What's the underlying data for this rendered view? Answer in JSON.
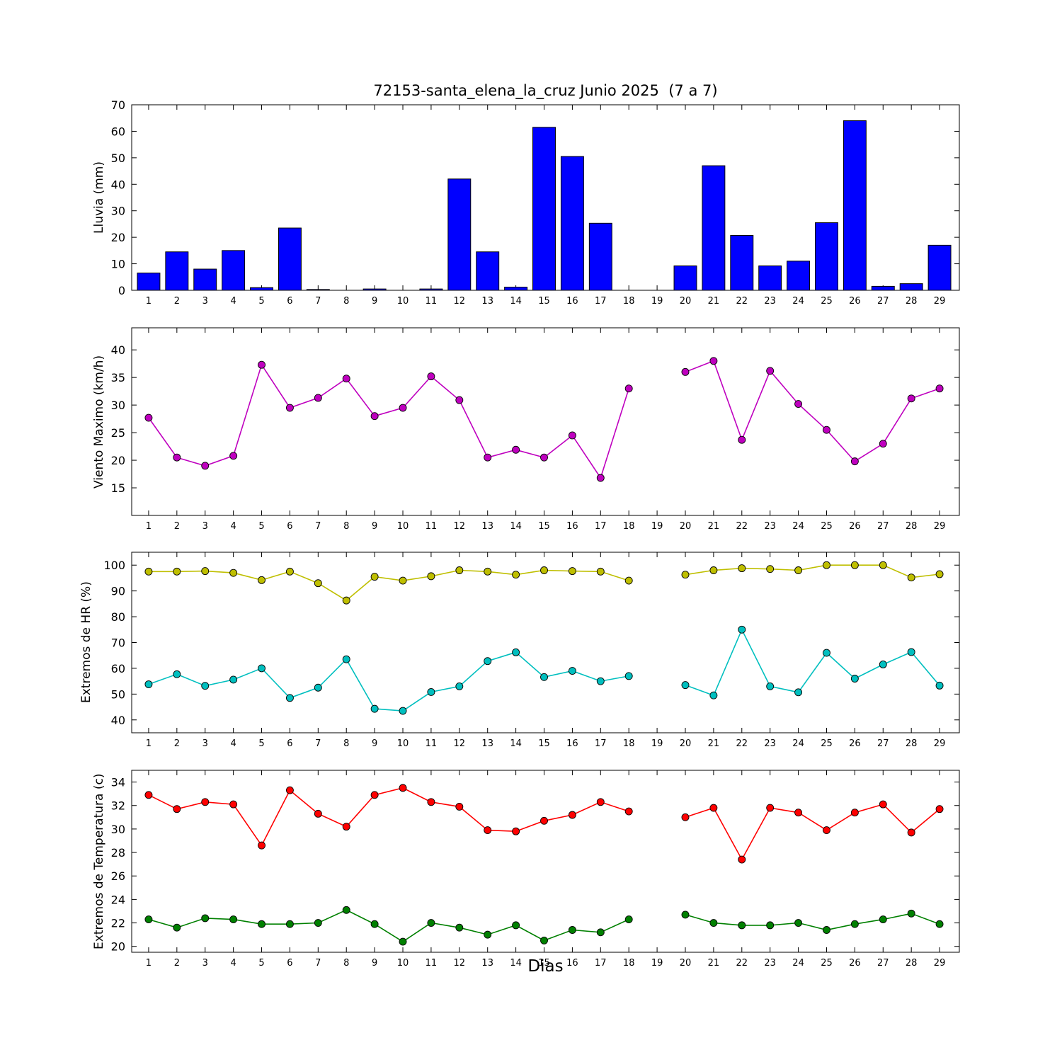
{
  "title": "72153-santa_elena_la_cruz Junio 2025  (7 a 7)",
  "xlabel": "Dias",
  "chart_data": [
    {
      "type": "bar",
      "name": "lluvia",
      "ylabel": "Lluvia (mm)",
      "color": "#0000FF",
      "x": [
        1,
        2,
        3,
        4,
        5,
        6,
        7,
        8,
        9,
        10,
        11,
        12,
        13,
        14,
        15,
        16,
        17,
        18,
        19,
        20,
        21,
        22,
        23,
        24,
        25,
        26,
        27,
        28,
        29
      ],
      "values": [
        6.5,
        14.5,
        8,
        15,
        1,
        23.5,
        0.3,
        0,
        0.5,
        0,
        0.5,
        42,
        14.5,
        1.2,
        61.5,
        50.5,
        25.3,
        0,
        null,
        9.2,
        47,
        20.7,
        9.2,
        11,
        25.5,
        64,
        1.5,
        2.5,
        17
      ],
      "ylim": [
        0,
        70
      ],
      "yticks": [
        0,
        10,
        20,
        30,
        40,
        50,
        60,
        70
      ],
      "grid": false,
      "legend": "none"
    },
    {
      "type": "line",
      "name": "viento-maximo",
      "ylabel": "Viento Maximo (km/h)",
      "x": [
        1,
        2,
        3,
        4,
        5,
        6,
        7,
        8,
        9,
        10,
        11,
        12,
        13,
        14,
        15,
        16,
        17,
        18,
        19,
        20,
        21,
        22,
        23,
        24,
        25,
        26,
        27,
        28,
        29
      ],
      "series": [
        {
          "name": "viento-maximo",
          "color": "#BF00BF",
          "values": [
            27.7,
            20.5,
            19,
            20.8,
            37.3,
            29.5,
            31.3,
            34.8,
            28,
            29.5,
            35.2,
            30.9,
            20.5,
            21.9,
            20.5,
            24.5,
            16.8,
            33,
            null,
            36,
            38,
            23.7,
            36.2,
            30.2,
            25.5,
            19.8,
            23,
            31.2,
            33
          ]
        }
      ],
      "ylim": [
        10,
        44
      ],
      "yticks": [
        15,
        20,
        25,
        30,
        35,
        40
      ],
      "grid": false,
      "legend": "none"
    },
    {
      "type": "line",
      "name": "extremos-hr",
      "ylabel": "Extremos de HR (%)",
      "x": [
        1,
        2,
        3,
        4,
        5,
        6,
        7,
        8,
        9,
        10,
        11,
        12,
        13,
        14,
        15,
        16,
        17,
        18,
        19,
        20,
        21,
        22,
        23,
        24,
        25,
        26,
        27,
        28,
        29
      ],
      "series": [
        {
          "name": "hr-maxima",
          "color": "#BFBF00",
          "values": [
            97.5,
            97.5,
            97.7,
            97,
            94.2,
            97.5,
            93,
            86.3,
            95.5,
            94,
            95.7,
            98,
            97.5,
            96.3,
            98,
            97.7,
            97.5,
            94,
            null,
            96.3,
            98,
            98.8,
            98.5,
            98,
            100,
            100,
            100,
            95.2,
            96.5
          ]
        },
        {
          "name": "hr-minima",
          "color": "#00BFBF",
          "values": [
            53.8,
            57.7,
            53.2,
            55.6,
            60,
            48.5,
            52.5,
            63.5,
            44.3,
            43.5,
            50.8,
            53,
            62.8,
            66.2,
            56.6,
            59,
            55,
            57,
            null,
            53.5,
            49.5,
            75,
            53,
            50.7,
            66,
            56,
            61.5,
            66.3,
            53.3
          ]
        }
      ],
      "ylim": [
        35,
        105
      ],
      "yticks": [
        40,
        50,
        60,
        70,
        80,
        90,
        100
      ],
      "grid": false,
      "legend": "none"
    },
    {
      "type": "line",
      "name": "extremos-temperatura",
      "ylabel": "Extremos de Temperatura (c)",
      "x": [
        1,
        2,
        3,
        4,
        5,
        6,
        7,
        8,
        9,
        10,
        11,
        12,
        13,
        14,
        15,
        16,
        17,
        18,
        19,
        20,
        21,
        22,
        23,
        24,
        25,
        26,
        27,
        28,
        29
      ],
      "series": [
        {
          "name": "temperatura-maxima",
          "color": "#FF0000",
          "values": [
            32.9,
            31.7,
            32.3,
            32.1,
            28.6,
            33.3,
            31.3,
            30.2,
            32.9,
            33.5,
            32.3,
            31.9,
            29.9,
            29.8,
            30.7,
            31.2,
            32.3,
            31.5,
            null,
            31.0,
            31.8,
            27.4,
            31.8,
            31.4,
            29.9,
            31.4,
            32.1,
            29.7,
            31.7
          ]
        },
        {
          "name": "temperatura-minima",
          "color": "#008000",
          "values": [
            22.3,
            21.6,
            22.4,
            22.3,
            21.9,
            21.9,
            22.0,
            23.1,
            21.9,
            20.4,
            22.0,
            21.6,
            21.0,
            21.8,
            20.5,
            21.4,
            21.2,
            22.3,
            null,
            22.7,
            22.0,
            21.8,
            21.8,
            22.0,
            21.4,
            21.9,
            22.3,
            22.8,
            21.9
          ]
        }
      ],
      "ylim": [
        19.5,
        35
      ],
      "yticks": [
        20,
        22,
        24,
        26,
        28,
        30,
        32,
        34
      ],
      "grid": false,
      "legend": "none"
    }
  ]
}
